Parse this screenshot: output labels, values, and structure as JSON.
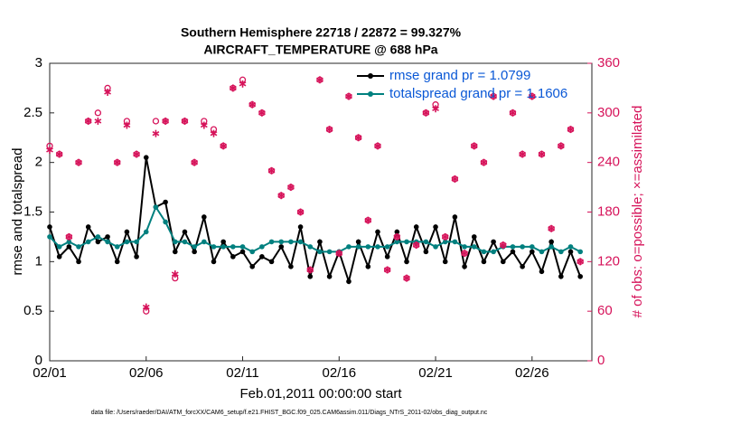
{
  "chart_data": {
    "type": "line",
    "title": "Southern Hemisphere 22718 / 22872 = 99.327%",
    "subtitle": "AIRCRAFT_TEMPERATURE @ 688 hPa",
    "xlabel": "Feb.01,2011 00:00:00 start",
    "ylabel": "rmse and totalspread",
    "y2label": "# of obs: o=possible; ×=assimilated",
    "footnote": "data file: /Users/raeder/DAI/ATM_forcXX/CAM6_setup/f.e21.FHIST_BGC.f09_025.CAM6assim.011/Diags_NTrS_2011-02/obs_diag_output.nc",
    "legend": "upper right",
    "xlim": [
      0,
      28.1
    ],
    "xticks": [
      {
        "value": 0,
        "label": "02/01"
      },
      {
        "value": 5,
        "label": "02/06"
      },
      {
        "value": 10,
        "label": "02/11"
      },
      {
        "value": 15,
        "label": "02/16"
      },
      {
        "value": 20,
        "label": "02/21"
      },
      {
        "value": 25,
        "label": "02/26"
      }
    ],
    "ylim": [
      0,
      3
    ],
    "yticks": [
      0,
      0.5,
      1,
      1.5,
      2,
      2.5,
      3
    ],
    "y2lim": [
      0,
      360
    ],
    "y2ticks": [
      0,
      60,
      120,
      180,
      240,
      300,
      360
    ],
    "x": [
      0,
      0.5,
      1,
      1.5,
      2,
      2.5,
      3,
      3.5,
      4,
      4.5,
      5,
      5.5,
      6,
      6.5,
      7,
      7.5,
      8,
      8.5,
      9,
      9.5,
      10,
      10.5,
      11,
      11.5,
      12,
      12.5,
      13,
      13.5,
      14,
      14.5,
      15,
      15.5,
      16,
      16.5,
      17,
      17.5,
      18,
      18.5,
      19,
      19.5,
      20,
      20.5,
      21,
      21.5,
      22,
      22.5,
      23,
      23.5,
      24,
      24.5,
      25,
      25.5,
      26,
      26.5,
      27,
      27.5
    ],
    "series": [
      {
        "name": "rmse grand pr = 1.0799",
        "color": "#000000",
        "marker": "dot",
        "values": [
          1.35,
          1.05,
          1.15,
          1.0,
          1.35,
          1.2,
          1.25,
          1.0,
          1.3,
          1.05,
          2.05,
          1.55,
          1.6,
          1.1,
          1.3,
          1.1,
          1.45,
          1.0,
          1.2,
          1.05,
          1.1,
          0.95,
          1.05,
          1.0,
          1.15,
          0.95,
          1.35,
          0.85,
          1.2,
          0.85,
          1.1,
          0.8,
          1.2,
          0.95,
          1.3,
          1.05,
          1.3,
          1.0,
          1.35,
          1.1,
          1.35,
          1.0,
          1.45,
          0.95,
          1.25,
          1.0,
          1.2,
          1.0,
          1.1,
          0.95,
          1.1,
          0.9,
          1.2,
          0.85,
          1.1,
          0.85
        ]
      },
      {
        "name": "totalspread grand pr = 1.1606",
        "color": "#00807f",
        "marker": "dot",
        "values": [
          1.25,
          1.15,
          1.2,
          1.15,
          1.2,
          1.25,
          1.2,
          1.15,
          1.2,
          1.2,
          1.3,
          1.55,
          1.4,
          1.2,
          1.2,
          1.15,
          1.2,
          1.15,
          1.15,
          1.15,
          1.15,
          1.1,
          1.15,
          1.2,
          1.2,
          1.2,
          1.2,
          1.15,
          1.1,
          1.1,
          1.1,
          1.15,
          1.15,
          1.15,
          1.15,
          1.15,
          1.2,
          1.2,
          1.2,
          1.2,
          1.15,
          1.2,
          1.2,
          1.15,
          1.15,
          1.1,
          1.1,
          1.15,
          1.15,
          1.15,
          1.15,
          1.1,
          1.15,
          1.1,
          1.15,
          1.1
        ]
      },
      {
        "color": "#d6135a",
        "marker": "o",
        "axis": "y2",
        "values": [
          260,
          250,
          150,
          240,
          290,
          300,
          330,
          240,
          290,
          250,
          60,
          290,
          290,
          100,
          290,
          240,
          290,
          280,
          260,
          330,
          340,
          310,
          300,
          230,
          200,
          210,
          180,
          110,
          340,
          280,
          130,
          320,
          270,
          170,
          260,
          110,
          150,
          100,
          140,
          300,
          310,
          150,
          220,
          130,
          260,
          240,
          320,
          140,
          300,
          250,
          320,
          250,
          160,
          260,
          280,
          120
        ]
      },
      {
        "color": "#d6135a",
        "marker": "x",
        "axis": "y2",
        "values": [
          255,
          250,
          150,
          240,
          290,
          290,
          325,
          240,
          285,
          250,
          65,
          275,
          290,
          105,
          290,
          240,
          285,
          275,
          260,
          330,
          335,
          310,
          300,
          230,
          200,
          210,
          180,
          110,
          340,
          280,
          130,
          320,
          270,
          170,
          260,
          110,
          150,
          100,
          140,
          300,
          305,
          150,
          220,
          130,
          260,
          240,
          320,
          140,
          300,
          250,
          320,
          250,
          160,
          260,
          280,
          120
        ]
      }
    ]
  }
}
